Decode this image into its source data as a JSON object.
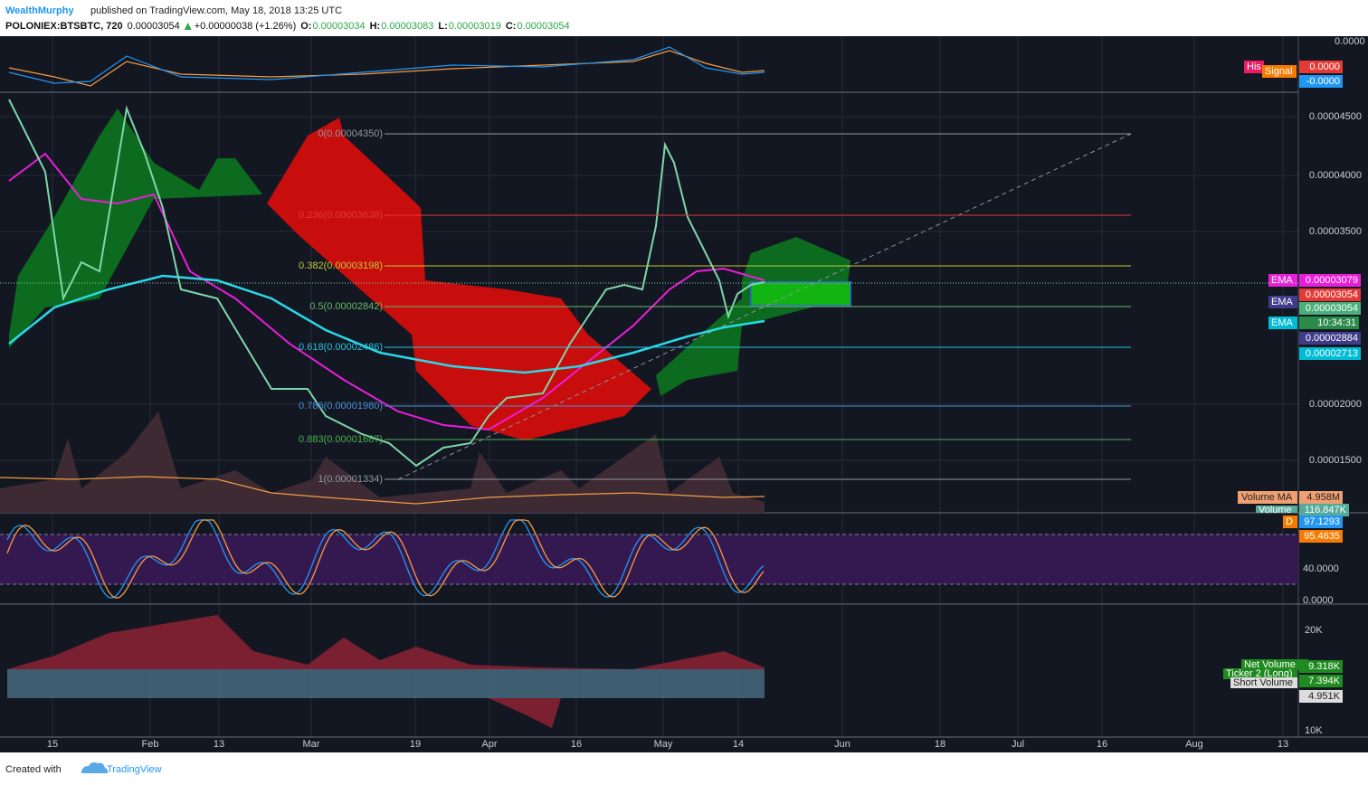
{
  "header": {
    "author": "WealthMurphy",
    "published": "published on TradingView.com, May 18, 2018 13:25 UTC"
  },
  "ticker": {
    "symbol": "POLONIEX:BTSBTC, 720",
    "price": "0.00003054",
    "change": "+0.00000038 (+1.26%)",
    "open_label": "O:",
    "open": "0.00003034",
    "high_label": "H:",
    "high": "0.00003083",
    "low_label": "L:",
    "low": "0.00003019",
    "close_label": "C:",
    "close": "0.00003054"
  },
  "x_axis": [
    "15",
    "Feb",
    "13",
    "Mar",
    "19",
    "Apr",
    "16",
    "May",
    "14",
    "Jun",
    "18",
    "Jul",
    "16",
    "Aug",
    "13"
  ],
  "macd_axis": [
    "0.0000"
  ],
  "macd_tags": [
    {
      "label": "His",
      "value": "0.0000"
    },
    {
      "label": "Signal",
      "value": "-0.0000"
    }
  ],
  "price_axis": [
    "0.00004500",
    "0.00004000",
    "0.00003500",
    "0.00002000",
    "0.00001500"
  ],
  "fib_levels": [
    "0(0.00004350)",
    "0.236(0.00003638)",
    "0.382(0.00003198)",
    "0.5(0.00002842)",
    "0.618(0.00002486)",
    "0.786(0.00001980)",
    "0.883(0.00001687)",
    "1(0.00001334)"
  ],
  "price_tags": [
    {
      "label": "EMA",
      "value": "0.00003079"
    },
    {
      "value": "0.00003054"
    },
    {
      "label": "EMA",
      "value": "0.00003054"
    },
    {
      "label": "EMA",
      "value": "10:34:31"
    },
    {
      "value": "0.00002884"
    },
    {
      "value": "0.00002713"
    }
  ],
  "volume_tags": [
    {
      "label": "Volume MA",
      "value": "4.958M"
    },
    {
      "label": "Volume",
      "value": "116.847K"
    }
  ],
  "stoch_axis": [
    "40.0000",
    "0.0000"
  ],
  "stoch_tags": [
    {
      "label": "D",
      "value": "97.1293"
    },
    {
      "value": "95.4635"
    }
  ],
  "netvol_axis": [
    "20K",
    "10K"
  ],
  "netvol_tags": [
    {
      "label": "Net Volume",
      "value": "9.318K"
    },
    {
      "label": "Ticker 2 (Long)",
      "value": "7.394K"
    },
    {
      "label": "Short Volume",
      "value": "4.951K"
    }
  ],
  "footer": {
    "created": "Created with",
    "brand": "TradingView"
  }
}
